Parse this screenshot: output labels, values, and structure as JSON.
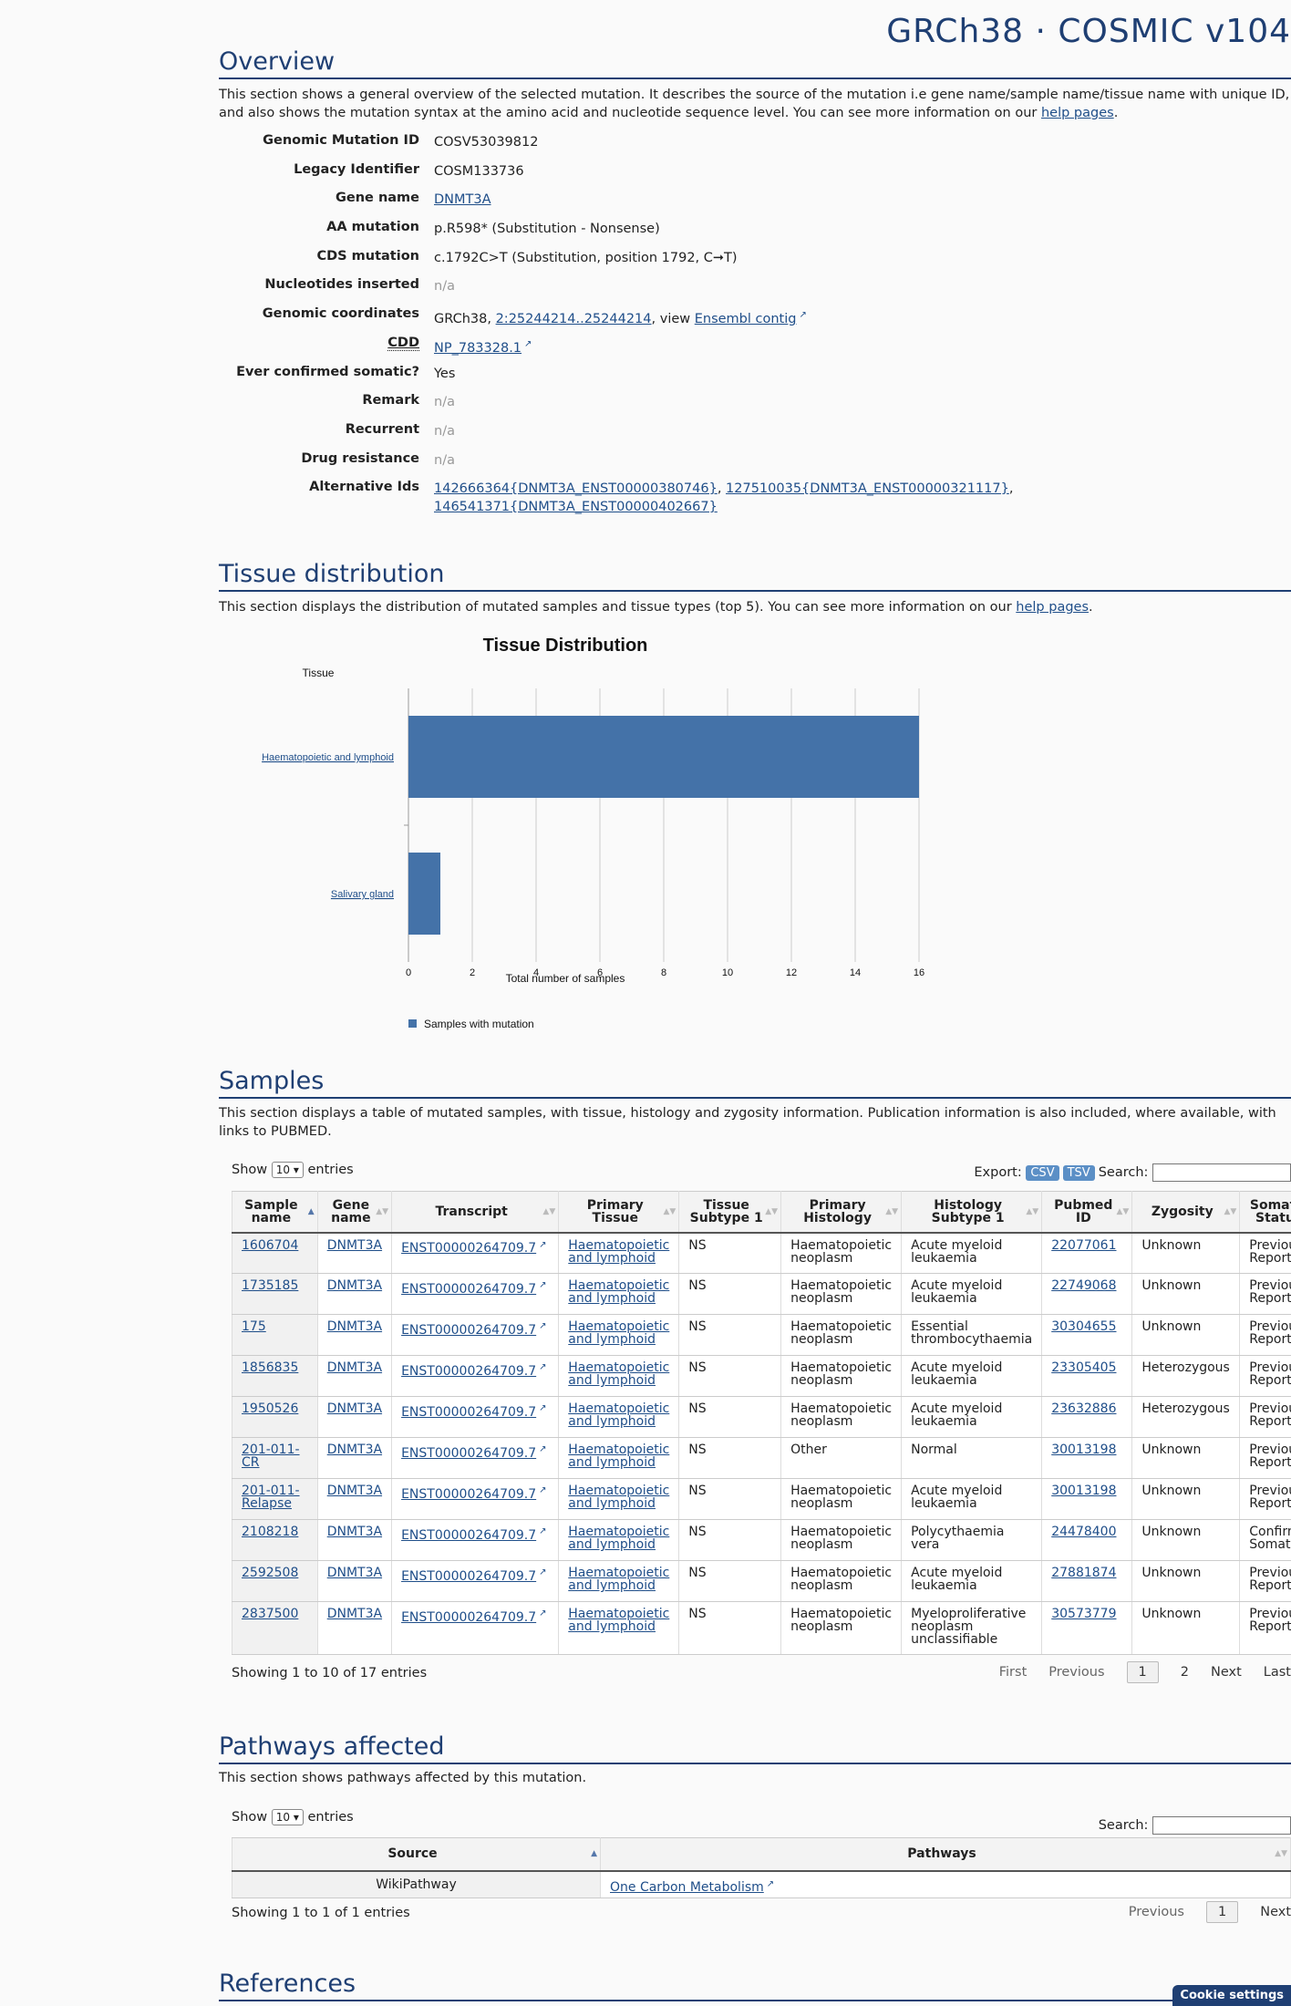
{
  "brand": "GRCh38 · COSMIC v104",
  "overview": {
    "heading": "Overview",
    "intro_before_link": "This section shows a general overview of the selected mutation. It describes the source of the mutation i.e gene name/sample name/tissue name with unique ID, and also shows the mutation syntax at the amino acid and nucleotide sequence level. You can see more information on our ",
    "intro_link": "help pages",
    "intro_after_link": ".",
    "fields": {
      "genomic_mutation_id": {
        "label": "Genomic Mutation ID",
        "value": "COSV53039812"
      },
      "legacy_identifier": {
        "label": "Legacy Identifier",
        "value": "COSM133736"
      },
      "gene_name": {
        "label": "Gene name",
        "value": "DNMT3A"
      },
      "aa_mutation": {
        "label": "AA mutation",
        "value": "p.R598* (Substitution - Nonsense)"
      },
      "cds_mutation": {
        "label": "CDS mutation",
        "value": "c.1792C>T (Substitution, position 1792, C➞T)"
      },
      "nucleotides_inserted": {
        "label": "Nucleotides inserted",
        "value": "n/a"
      },
      "genomic_coordinates": {
        "label": "Genomic coordinates",
        "prefix": "GRCh38, ",
        "link": "2:25244214..25244214",
        "middle": ", view ",
        "link2": "Ensembl contig"
      },
      "cdd": {
        "label": "CDD",
        "value": "NP_783328.1"
      },
      "ever_confirmed_somatic": {
        "label": "Ever confirmed somatic?",
        "value": "Yes"
      },
      "remark": {
        "label": "Remark",
        "value": "n/a"
      },
      "recurrent": {
        "label": "Recurrent",
        "value": "n/a"
      },
      "drug_resistance": {
        "label": "Drug resistance",
        "value": "n/a"
      },
      "alternative_ids": {
        "label": "Alternative Ids",
        "ids": [
          "142666364{DNMT3A_ENST00000380746}",
          "127510035{DNMT3A_ENST00000321117}",
          "146541371{DNMT3A_ENST00000402667}"
        ]
      }
    }
  },
  "tissue": {
    "heading": "Tissue distribution",
    "intro_before_link": "This section displays the distribution of mutated samples and tissue types (top 5). You can see more information on our ",
    "intro_link": "help pages",
    "intro_after_link": "."
  },
  "chart_data": {
    "type": "bar",
    "orientation": "horizontal",
    "title": "Tissue Distribution",
    "category_axis_label": "Tissue",
    "xlabel": "Total number of samples",
    "categories": [
      "Haematopoietic and lymphoid",
      "Salivary gland"
    ],
    "series": [
      {
        "name": "Samples with mutation",
        "values": [
          16,
          1
        ]
      }
    ],
    "xlim": [
      0,
      16
    ],
    "xticks": [
      0,
      2,
      4,
      6,
      8,
      10,
      12,
      14,
      16
    ],
    "grid": true,
    "legend": "bottom-left",
    "bar_color": "#4472a8"
  },
  "samples": {
    "heading": "Samples",
    "intro": "This section displays a table of mutated samples, with tissue, histology and zygosity information. Publication information is also included, where available, with links to PUBMED.",
    "show_label": "Show",
    "entries_value": "10",
    "entries_label": "entries",
    "export_label": "Export:",
    "csv_label": "CSV",
    "tsv_label": "TSV",
    "search_label": "Search:",
    "columns": [
      "Sample name",
      "Gene name",
      "Transcript",
      "Primary Tissue",
      "Tissue Subtype 1",
      "Primary Histology",
      "Histology Subtype 1",
      "Pubmed ID",
      "Zygosity",
      "Somatic Status"
    ],
    "rows": [
      {
        "sample": "1606704",
        "gene": "DNMT3A",
        "transcript": "ENST00000264709.7",
        "tissue": "Haematopoietic and lymphoid",
        "subtype": "NS",
        "histology": "Haematopoietic neoplasm",
        "hist_sub": "Acute myeloid leukaemia",
        "pubmed": "22077061",
        "zygosity": "Unknown",
        "status": "Previously Reported"
      },
      {
        "sample": "1735185",
        "gene": "DNMT3A",
        "transcript": "ENST00000264709.7",
        "tissue": "Haematopoietic and lymphoid",
        "subtype": "NS",
        "histology": "Haematopoietic neoplasm",
        "hist_sub": "Acute myeloid leukaemia",
        "pubmed": "22749068",
        "zygosity": "Unknown",
        "status": "Previously Reported"
      },
      {
        "sample": "175",
        "gene": "DNMT3A",
        "transcript": "ENST00000264709.7",
        "tissue": "Haematopoietic and lymphoid",
        "subtype": "NS",
        "histology": "Haematopoietic neoplasm",
        "hist_sub": "Essential thrombocythaemia",
        "pubmed": "30304655",
        "zygosity": "Unknown",
        "status": "Previously Reported"
      },
      {
        "sample": "1856835",
        "gene": "DNMT3A",
        "transcript": "ENST00000264709.7",
        "tissue": "Haematopoietic and lymphoid",
        "subtype": "NS",
        "histology": "Haematopoietic neoplasm",
        "hist_sub": "Acute myeloid leukaemia",
        "pubmed": "23305405",
        "zygosity": "Heterozygous",
        "status": "Previously Reported"
      },
      {
        "sample": "1950526",
        "gene": "DNMT3A",
        "transcript": "ENST00000264709.7",
        "tissue": "Haematopoietic and lymphoid",
        "subtype": "NS",
        "histology": "Haematopoietic neoplasm",
        "hist_sub": "Acute myeloid leukaemia",
        "pubmed": "23632886",
        "zygosity": "Heterozygous",
        "status": "Previously Reported"
      },
      {
        "sample": "201-011-CR",
        "gene": "DNMT3A",
        "transcript": "ENST00000264709.7",
        "tissue": "Haematopoietic and lymphoid",
        "subtype": "NS",
        "histology": "Other",
        "hist_sub": "Normal",
        "pubmed": "30013198",
        "zygosity": "Unknown",
        "status": "Previously Reported"
      },
      {
        "sample": "201-011-Relapse",
        "gene": "DNMT3A",
        "transcript": "ENST00000264709.7",
        "tissue": "Haematopoietic and lymphoid",
        "subtype": "NS",
        "histology": "Haematopoietic neoplasm",
        "hist_sub": "Acute myeloid leukaemia",
        "pubmed": "30013198",
        "zygosity": "Unknown",
        "status": "Previously Reported"
      },
      {
        "sample": "2108218",
        "gene": "DNMT3A",
        "transcript": "ENST00000264709.7",
        "tissue": "Haematopoietic and lymphoid",
        "subtype": "NS",
        "histology": "Haematopoietic neoplasm",
        "hist_sub": "Polycythaemia vera",
        "pubmed": "24478400",
        "zygosity": "Unknown",
        "status": "Confirmed Somatic"
      },
      {
        "sample": "2592508",
        "gene": "DNMT3A",
        "transcript": "ENST00000264709.7",
        "tissue": "Haematopoietic and lymphoid",
        "subtype": "NS",
        "histology": "Haematopoietic neoplasm",
        "hist_sub": "Acute myeloid leukaemia",
        "pubmed": "27881874",
        "zygosity": "Unknown",
        "status": "Previously Reported"
      },
      {
        "sample": "2837500",
        "gene": "DNMT3A",
        "transcript": "ENST00000264709.7",
        "tissue": "Haematopoietic and lymphoid",
        "subtype": "NS",
        "histology": "Haematopoietic neoplasm",
        "hist_sub": "Myeloproliferative neoplasm unclassifiable",
        "pubmed": "30573779",
        "zygosity": "Unknown",
        "status": "Previously Reported"
      }
    ],
    "info": "Showing 1 to 10 of 17 entries",
    "pager": {
      "first": "First",
      "previous": "Previous",
      "current": "1",
      "page2": "2",
      "next": "Next",
      "last": "Last"
    }
  },
  "pathways": {
    "heading": "Pathways affected",
    "intro": "This section shows pathways affected by this mutation.",
    "show_label": "Show",
    "entries_value": "10",
    "entries_label": "entries",
    "search_label": "Search:",
    "columns": [
      "Source",
      "Pathways"
    ],
    "rows": [
      {
        "source": "WikiPathway",
        "pathway": "One Carbon Metabolism"
      }
    ],
    "info": "Showing 1 to 1 of 1 entries",
    "pager": {
      "previous": "Previous",
      "current": "1",
      "next": "Next"
    }
  },
  "references": {
    "heading": "References"
  },
  "cookie_button": "Cookie settings"
}
